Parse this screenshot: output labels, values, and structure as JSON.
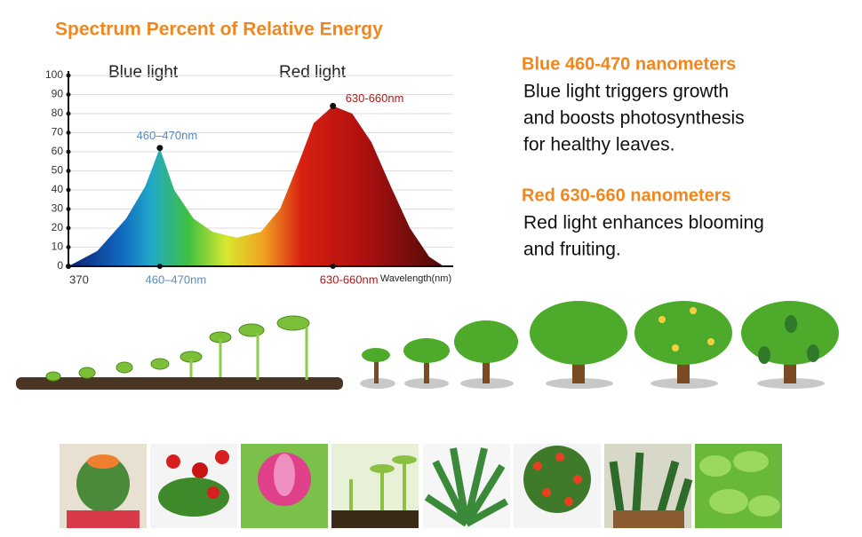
{
  "chart_data": {
    "type": "area",
    "title": "Spectrum Percent of Relative Energy",
    "x_label": "Wavelength(nm)",
    "region_labels": [
      "Blue light",
      "Red light"
    ],
    "annotations": [
      "460–470nm",
      "630-660nm"
    ],
    "x": [
      370,
      400,
      430,
      450,
      465,
      480,
      500,
      520,
      545,
      570,
      590,
      610,
      625,
      645,
      665,
      685,
      705,
      725,
      745,
      760
    ],
    "values": [
      0,
      8,
      25,
      42,
      62,
      40,
      25,
      18,
      15,
      18,
      30,
      55,
      75,
      84,
      80,
      65,
      42,
      20,
      5,
      0
    ],
    "xlim": [
      370,
      770
    ],
    "xticks": [
      370,
      {
        "value": 465,
        "label": "460–470nm"
      },
      {
        "value": 645,
        "label": "630-660nm"
      }
    ],
    "ylim": [
      0,
      100
    ],
    "yticks": [
      0,
      10,
      20,
      30,
      40,
      50,
      60,
      70,
      80,
      90,
      100
    ],
    "grid": true
  },
  "sections": [
    {
      "heading": "Blue 460-470 nanometers",
      "lines": [
        "Blue light triggers growth",
        "and boosts photosynthesis",
        "for healthy leaves."
      ]
    },
    {
      "heading": "Red 630-660 nanometers",
      "lines": [
        "Red light enhances blooming",
        "and fruiting."
      ]
    }
  ]
}
